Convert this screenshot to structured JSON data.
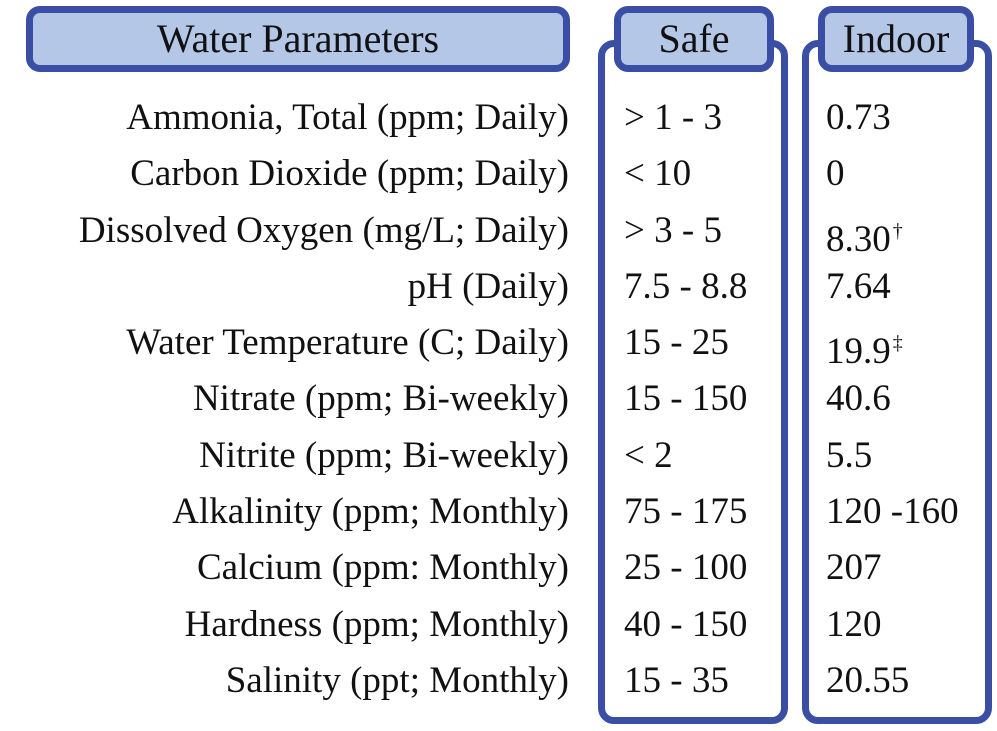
{
  "headers": {
    "parameters": "Water Parameters",
    "safe": "Safe",
    "indoor": "Indoor"
  },
  "rows": [
    {
      "parameter": "Ammonia, Total (ppm; Daily)",
      "safe": "> 1 - 3",
      "indoor": "0.73",
      "note": ""
    },
    {
      "parameter": "Carbon Dioxide (ppm; Daily)",
      "safe": "< 10",
      "indoor": "0",
      "note": ""
    },
    {
      "parameter": "Dissolved Oxygen (mg/L; Daily)",
      "safe": "> 3 - 5",
      "indoor": "8.30",
      "note": "†"
    },
    {
      "parameter": "pH (Daily)",
      "safe": "7.5 - 8.8",
      "indoor": "7.64",
      "note": ""
    },
    {
      "parameter": "Water Temperature (C; Daily)",
      "safe": "15 - 25",
      "indoor": "19.9",
      "note": "‡"
    },
    {
      "parameter": "Nitrate (ppm; Bi-weekly)",
      "safe": "15 - 150",
      "indoor": "40.6",
      "note": ""
    },
    {
      "parameter": "Nitrite (ppm; Bi-weekly)",
      "safe": "< 2",
      "indoor": "5.5",
      "note": ""
    },
    {
      "parameter": "Alkalinity (ppm; Monthly)",
      "safe": "75 - 175",
      "indoor": "120 -160",
      "note": ""
    },
    {
      "parameter": "Calcium (ppm: Monthly)",
      "safe": "25 - 100",
      "indoor": "207",
      "note": ""
    },
    {
      "parameter": "Hardness (ppm; Monthly)",
      "safe": "40 - 150",
      "indoor": "120",
      "note": ""
    },
    {
      "parameter": "Salinity (ppt; Monthly)",
      "safe": "15 - 35",
      "indoor": "20.55",
      "note": ""
    }
  ],
  "colors": {
    "header_fill": "#b4c7e7",
    "border": "#3a4fa3"
  }
}
